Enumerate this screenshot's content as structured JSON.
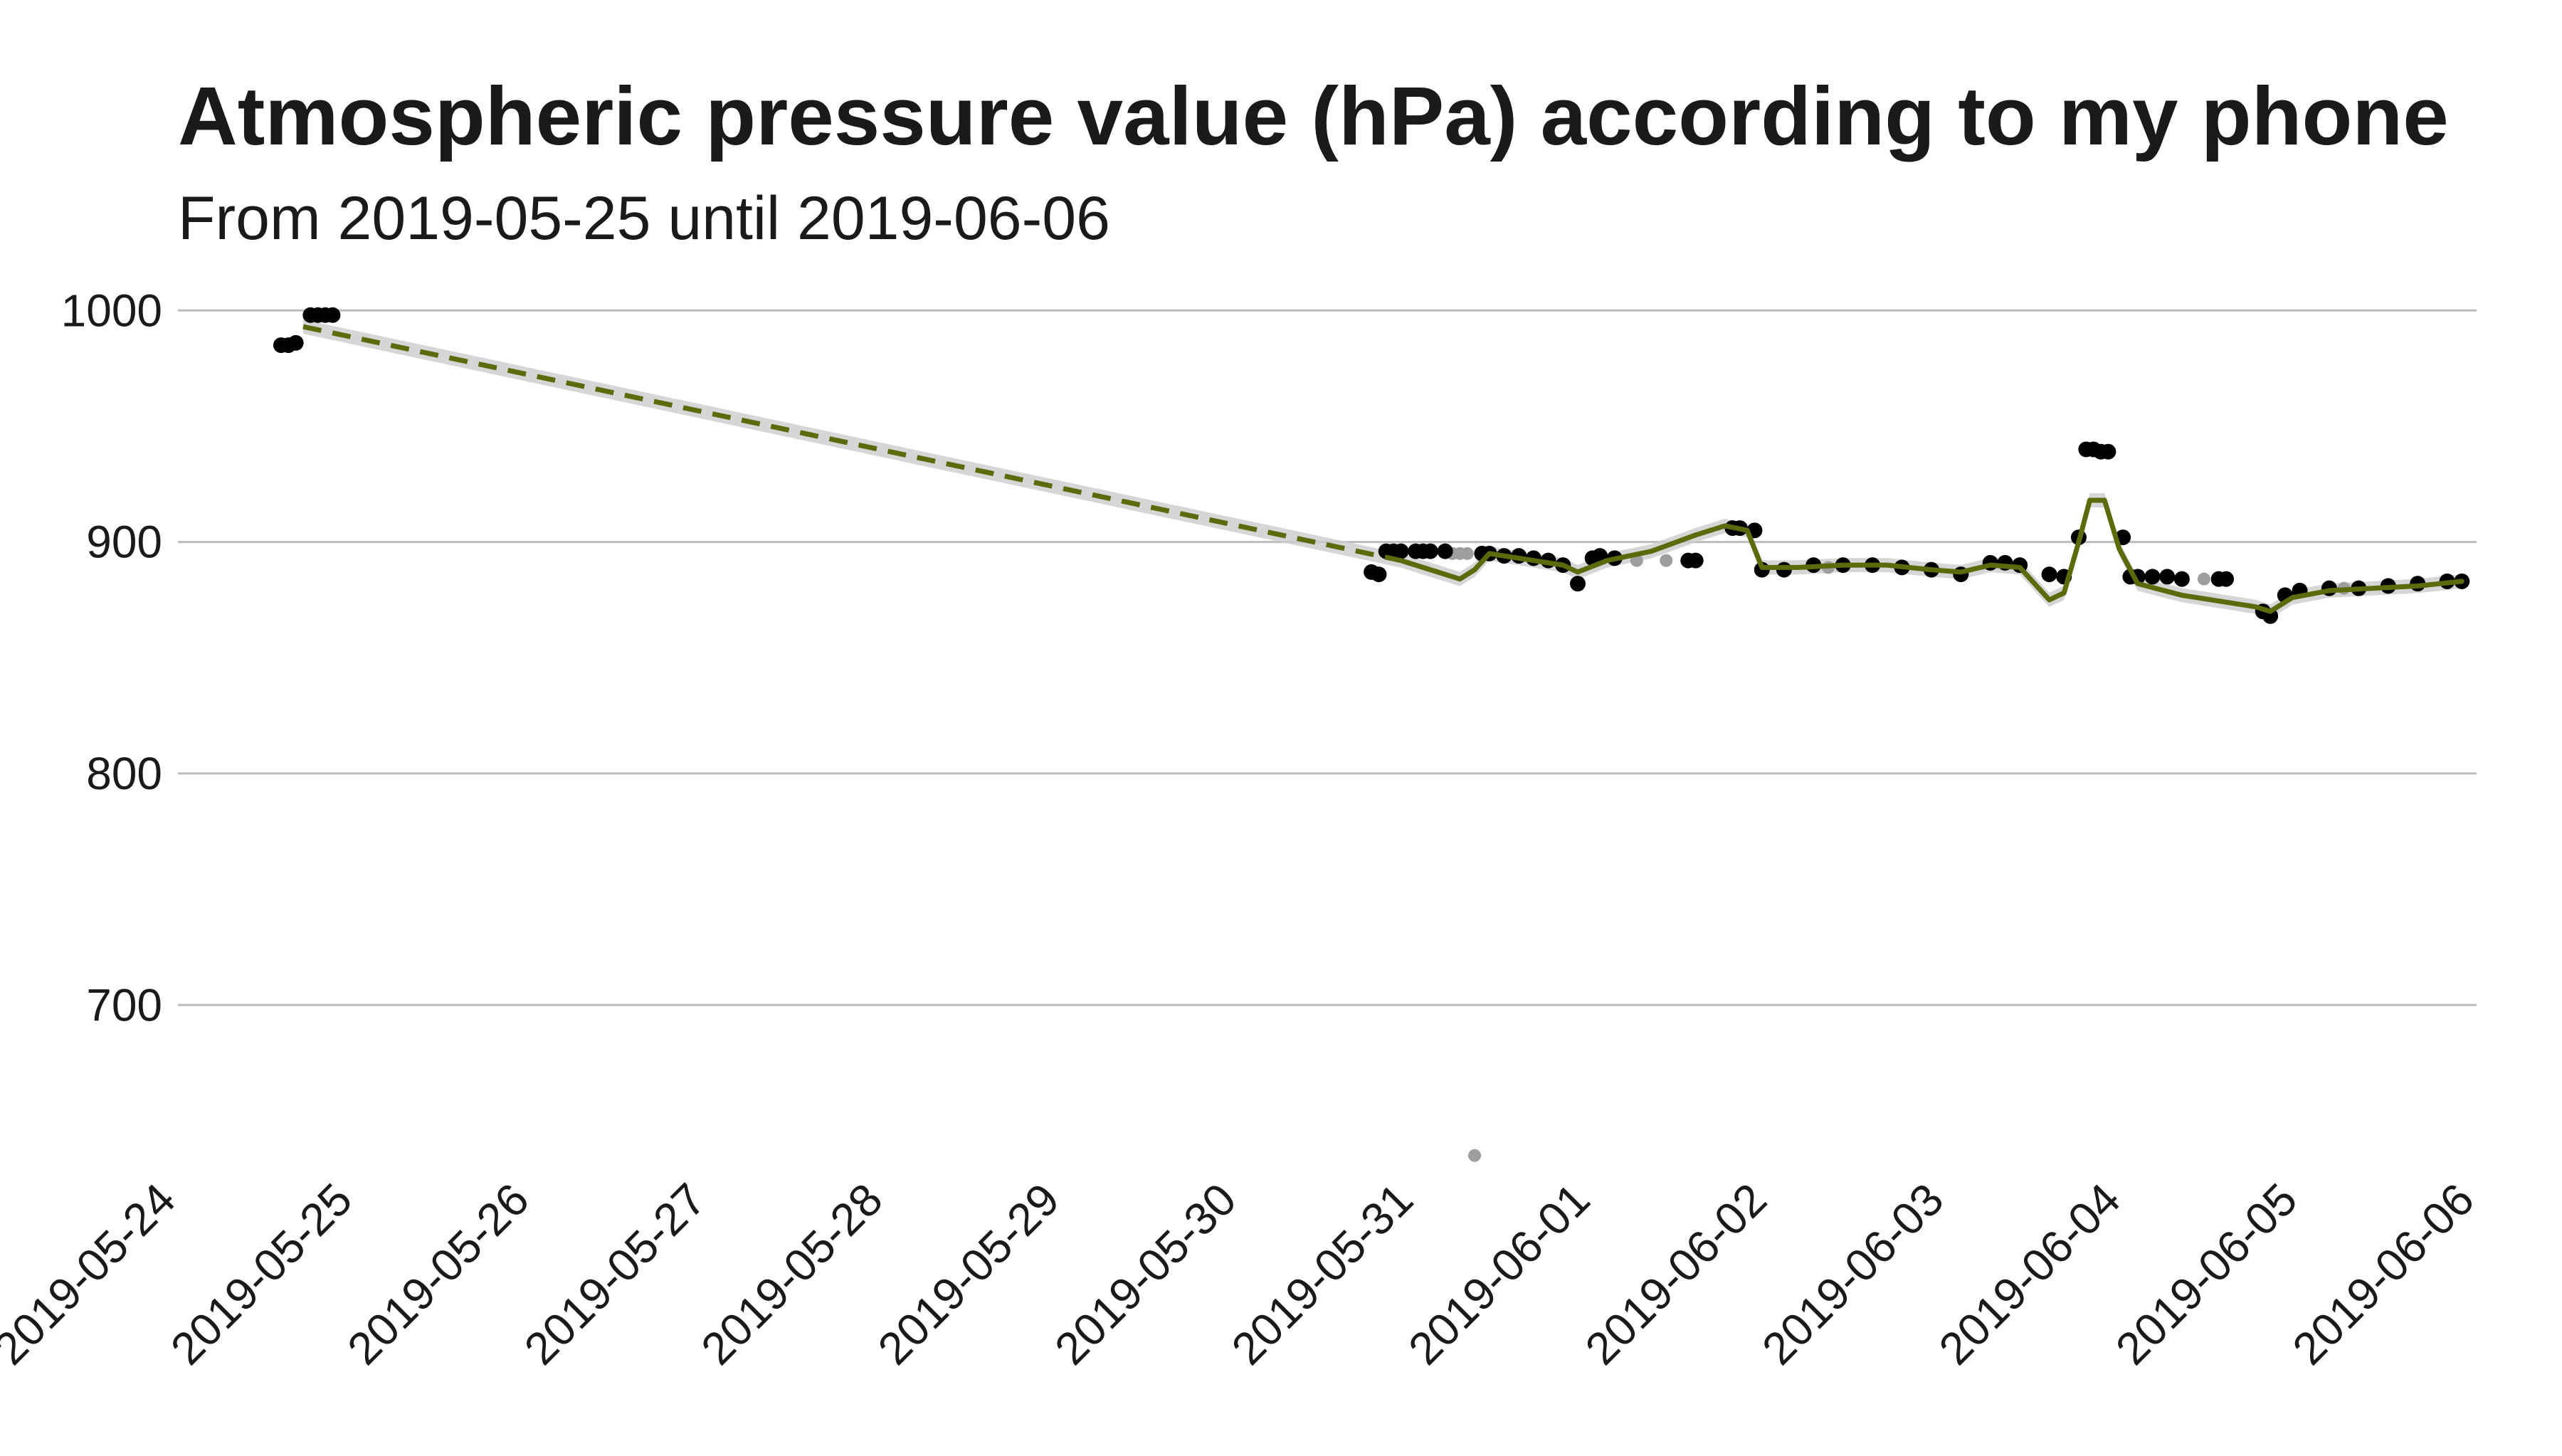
{
  "chart_data": {
    "type": "scatter",
    "title": "Atmospheric pressure value (hPa) according to my phone",
    "subtitle": "From 2019-05-25 until 2019-06-06",
    "xlabel": "",
    "ylabel": "",
    "x_type": "date",
    "xlim": [
      "2019-05-24",
      "2019-06-06"
    ],
    "ylim": [
      630,
      1005
    ],
    "grid": "horizontal",
    "legend": "none",
    "y_ticks": [
      700,
      800,
      900,
      1000
    ],
    "x_ticks": [
      "2019-05-24",
      "2019-05-25",
      "2019-05-26",
      "2019-05-27",
      "2019-05-28",
      "2019-05-29",
      "2019-05-30",
      "2019-05-31",
      "2019-06-01",
      "2019-06-02",
      "2019-06-03",
      "2019-06-04",
      "2019-06-05",
      "2019-06-06"
    ],
    "colors": {
      "points": "#000000",
      "outlier_points": "#9e9e9e",
      "smooth_line": "#5a6b0c",
      "ribbon": "#cccccc",
      "grid": "#bdbdbd"
    },
    "series": [
      {
        "kind": "points",
        "points": [
          [
            "2019-05-24T14:00",
            985
          ],
          [
            "2019-05-24T15:00",
            985
          ],
          [
            "2019-05-24T16:00",
            986
          ],
          [
            "2019-05-24T18:00",
            998
          ],
          [
            "2019-05-24T19:00",
            998
          ],
          [
            "2019-05-24T20:00",
            998
          ],
          [
            "2019-05-24T21:00",
            998
          ],
          [
            "2019-05-30T18:00",
            887
          ],
          [
            "2019-05-30T19:00",
            886
          ],
          [
            "2019-05-30T20:00",
            896
          ],
          [
            "2019-05-30T21:00",
            896
          ],
          [
            "2019-05-30T22:00",
            896
          ],
          [
            "2019-05-31T00:00",
            896
          ],
          [
            "2019-05-31T01:00",
            896
          ],
          [
            "2019-05-31T02:00",
            896
          ],
          [
            "2019-05-31T04:00",
            896
          ],
          [
            "2019-05-31T09:00",
            895
          ],
          [
            "2019-05-31T10:00",
            895
          ],
          [
            "2019-05-31T12:00",
            894
          ],
          [
            "2019-05-31T14:00",
            894
          ],
          [
            "2019-05-31T16:00",
            893
          ],
          [
            "2019-05-31T18:00",
            892
          ],
          [
            "2019-05-31T20:00",
            890
          ],
          [
            "2019-05-31T22:00",
            882
          ],
          [
            "2019-06-01T00:00",
            893
          ],
          [
            "2019-06-01T01:00",
            894
          ],
          [
            "2019-06-01T03:00",
            893
          ],
          [
            "2019-06-01T13:00",
            892
          ],
          [
            "2019-06-01T14:00",
            892
          ],
          [
            "2019-06-01T19:00",
            906
          ],
          [
            "2019-06-01T20:00",
            906
          ],
          [
            "2019-06-01T22:00",
            905
          ],
          [
            "2019-06-01T23:00",
            888
          ],
          [
            "2019-06-02T02:00",
            888
          ],
          [
            "2019-06-02T06:00",
            890
          ],
          [
            "2019-06-02T10:00",
            890
          ],
          [
            "2019-06-02T14:00",
            890
          ],
          [
            "2019-06-02T18:00",
            889
          ],
          [
            "2019-06-02T22:00",
            888
          ],
          [
            "2019-06-03T02:00",
            886
          ],
          [
            "2019-06-03T06:00",
            891
          ],
          [
            "2019-06-03T08:00",
            891
          ],
          [
            "2019-06-03T10:00",
            890
          ],
          [
            "2019-06-03T14:00",
            886
          ],
          [
            "2019-06-03T16:00",
            885
          ],
          [
            "2019-06-03T18:00",
            902
          ],
          [
            "2019-06-03T19:00",
            940
          ],
          [
            "2019-06-03T20:00",
            940
          ],
          [
            "2019-06-03T21:00",
            939
          ],
          [
            "2019-06-03T22:00",
            939
          ],
          [
            "2019-06-04T00:00",
            902
          ],
          [
            "2019-06-04T01:00",
            885
          ],
          [
            "2019-06-04T02:00",
            885
          ],
          [
            "2019-06-04T04:00",
            885
          ],
          [
            "2019-06-04T06:00",
            885
          ],
          [
            "2019-06-04T08:00",
            884
          ],
          [
            "2019-06-04T13:00",
            884
          ],
          [
            "2019-06-04T14:00",
            884
          ],
          [
            "2019-06-04T19:00",
            870
          ],
          [
            "2019-06-04T20:00",
            868
          ],
          [
            "2019-06-04T22:00",
            877
          ],
          [
            "2019-06-05T00:00",
            879
          ],
          [
            "2019-06-05T04:00",
            880
          ],
          [
            "2019-06-05T08:00",
            880
          ],
          [
            "2019-06-05T12:00",
            881
          ],
          [
            "2019-06-05T16:00",
            882
          ],
          [
            "2019-06-05T20:00",
            883
          ],
          [
            "2019-06-05T22:00",
            883
          ]
        ]
      },
      {
        "kind": "outlier_points",
        "points": [
          [
            "2019-05-31T05:00",
            895
          ],
          [
            "2019-05-31T06:00",
            895
          ],
          [
            "2019-05-31T07:00",
            895
          ],
          [
            "2019-05-31T08:00",
            635
          ],
          [
            "2019-06-01T06:00",
            892
          ],
          [
            "2019-06-01T10:00",
            892
          ],
          [
            "2019-06-02T08:00",
            889
          ],
          [
            "2019-06-04T11:00",
            884
          ],
          [
            "2019-06-05T06:00",
            880
          ]
        ]
      },
      {
        "kind": "smooth_line",
        "points": [
          [
            "2019-05-24T17:00",
            993
          ],
          [
            "2019-05-30T22:00",
            892
          ],
          [
            "2019-05-31T04:00",
            886
          ],
          [
            "2019-05-31T06:00",
            884
          ],
          [
            "2019-05-31T08:00",
            888
          ],
          [
            "2019-05-31T10:00",
            895
          ],
          [
            "2019-05-31T14:00",
            893
          ],
          [
            "2019-05-31T20:00",
            890
          ],
          [
            "2019-05-31T22:00",
            887
          ],
          [
            "2019-06-01T02:00",
            892
          ],
          [
            "2019-06-01T08:00",
            896
          ],
          [
            "2019-06-01T14:00",
            903
          ],
          [
            "2019-06-01T18:00",
            907
          ],
          [
            "2019-06-01T21:00",
            905
          ],
          [
            "2019-06-01T23:00",
            889
          ],
          [
            "2019-06-02T04:00",
            889
          ],
          [
            "2019-06-02T10:00",
            890
          ],
          [
            "2019-06-02T16:00",
            890
          ],
          [
            "2019-06-02T22:00",
            888
          ],
          [
            "2019-06-03T02:00",
            887
          ],
          [
            "2019-06-03T06:00",
            890
          ],
          [
            "2019-06-03T10:00",
            889
          ],
          [
            "2019-06-03T12:00",
            882
          ],
          [
            "2019-06-03T14:00",
            875
          ],
          [
            "2019-06-03T16:00",
            878
          ],
          [
            "2019-06-03T18:00",
            900
          ],
          [
            "2019-06-03T19:30",
            918
          ],
          [
            "2019-06-03T21:30",
            918
          ],
          [
            "2019-06-03T23:30",
            897
          ],
          [
            "2019-06-04T02:00",
            882
          ],
          [
            "2019-06-04T08:00",
            877
          ],
          [
            "2019-06-04T14:00",
            874
          ],
          [
            "2019-06-04T18:00",
            872
          ],
          [
            "2019-06-04T20:00",
            870
          ],
          [
            "2019-06-04T23:00",
            876
          ],
          [
            "2019-06-05T04:00",
            879
          ],
          [
            "2019-06-05T10:00",
            880
          ],
          [
            "2019-06-05T16:00",
            881
          ],
          [
            "2019-06-05T22:00",
            883
          ]
        ]
      }
    ]
  }
}
